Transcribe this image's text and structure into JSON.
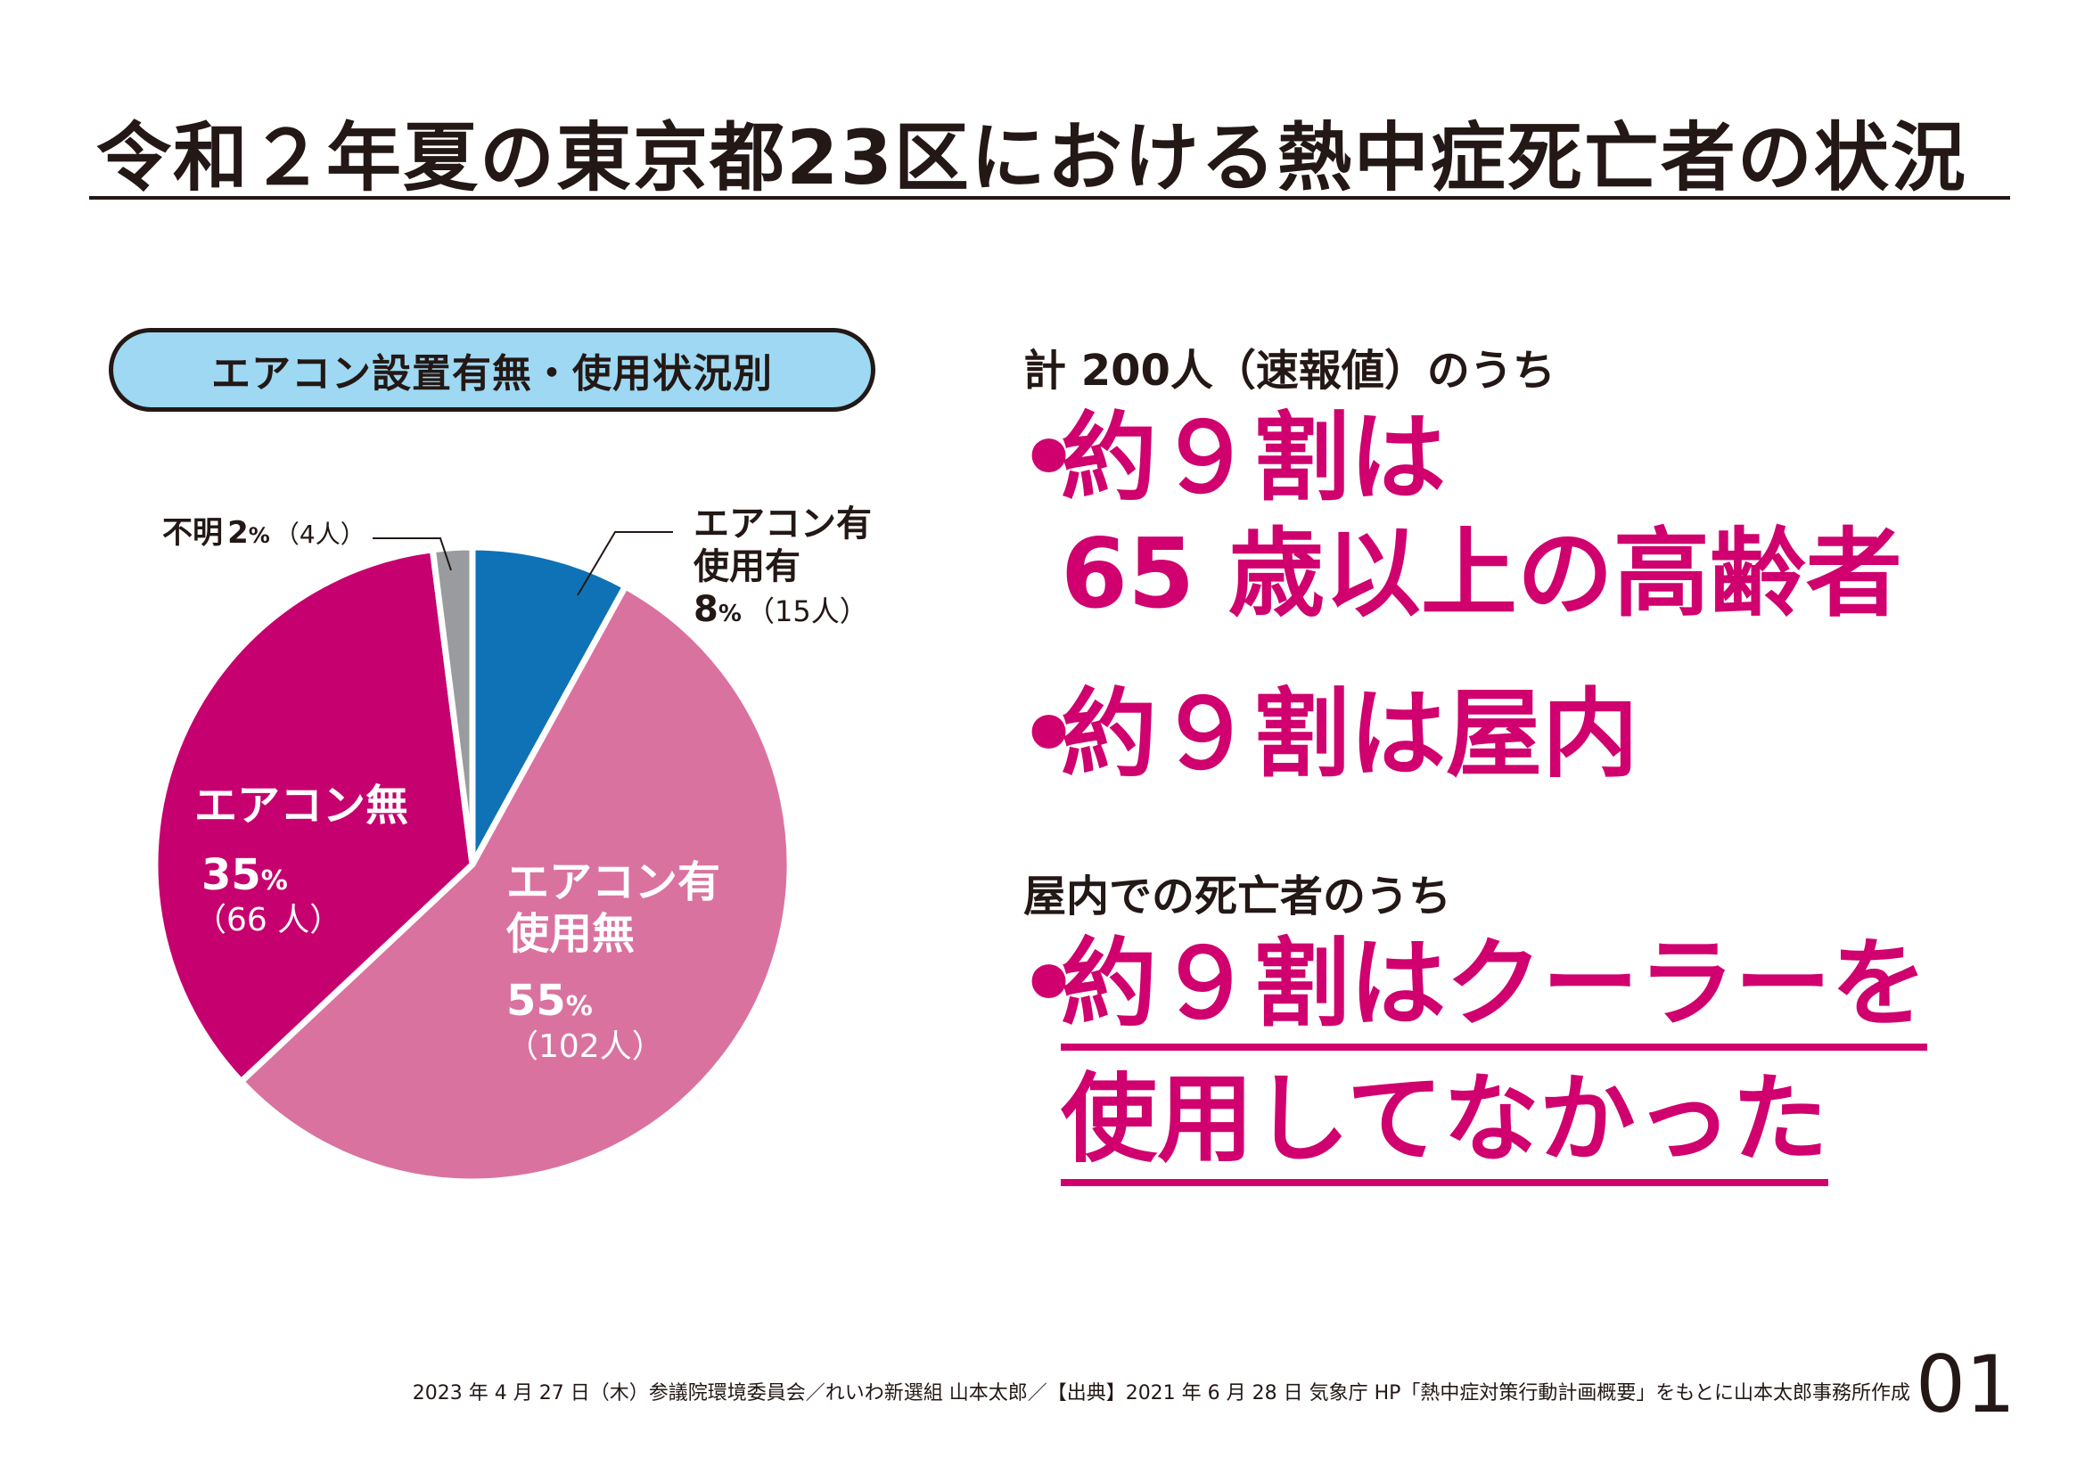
{
  "title": "令和２年夏の東京都23区における熱中症死亡者の状況",
  "chart_badge": "エアコン設置有無・使用状況別",
  "chart_data": {
    "type": "pie",
    "title": "エアコン設置有無・使用状況別",
    "slices": [
      {
        "key": "used",
        "label_lines": [
          "エアコン有",
          "使用有"
        ],
        "percent": 8,
        "count": 15,
        "percent_text": "8",
        "count_text": "（15人）",
        "color": "#0f72b6"
      },
      {
        "key": "not_used",
        "label_lines": [
          "エアコン有",
          "使用無"
        ],
        "percent": 55,
        "count": 102,
        "percent_text": "55",
        "count_text": "（102人）",
        "color": "#da72a0"
      },
      {
        "key": "none",
        "label_lines": [
          "エアコン無"
        ],
        "percent": 35,
        "count": 66,
        "percent_text": "35",
        "count_text": "（66 人）",
        "color": "#c6006e"
      },
      {
        "key": "unknown",
        "label_lines": [
          "不明"
        ],
        "percent": 2,
        "count": 4,
        "percent_text": "2",
        "count_text": "（4人）",
        "color": "#9a9b9f"
      }
    ],
    "percent_unit": "%"
  },
  "right": {
    "lead1": "計 200人（速報値）のうち",
    "point1_line1": "約９割は",
    "point1_line2": "65 歳以上の高齢者",
    "point2": "約９割は屋内",
    "lead2": "屋内での死亡者のうち",
    "point3_line1": "約９割はクーラーを",
    "point3_line2": "使用してなかった",
    "bullet": "•"
  },
  "footer": "2023 年 4 月 27 日（木）参議院環境委員会／れいわ新選組 山本太郎／【出典】2021 年 6 月 28 日 気象庁 HP「熱中症対策行動計画概要」をもとに山本太郎事務所作成",
  "page_number": "01"
}
